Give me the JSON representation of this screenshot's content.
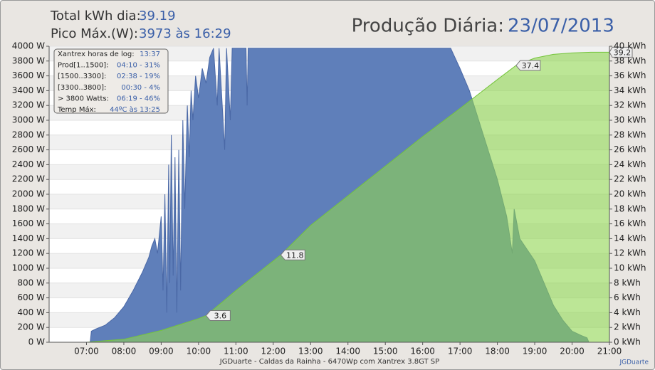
{
  "chart_data": {
    "type": "area",
    "header": {
      "total_label": "Total kWh dia:",
      "total_value": "39.19",
      "peak_label": "Pico Máx.(W):",
      "peak_value": "3973 às 16:29",
      "title": "Produção Diária:",
      "date": "23/07/2013"
    },
    "info_box": [
      [
        "Xantrex horas de log:",
        "13:37"
      ],
      [
        "Prod[1..1500]:",
        "04:10 - 31%"
      ],
      [
        "[1500..3300]:",
        "02:38 - 19%"
      ],
      [
        "[3300..3800]:",
        "00:30 - 4%"
      ],
      [
        "> 3800 Watts:",
        "06:19 - 46%"
      ],
      [
        "Temp Máx:",
        "44ºC às 13:25"
      ]
    ],
    "footer": "JGDuarte  -  Caldas da Rainha  -  6470Wp com Xantrex 3.8GT SP",
    "footer_link": "JGDuarte",
    "xlim": [
      6,
      21
    ],
    "xticks": [
      {
        "value": 7,
        "label": "07:00"
      },
      {
        "value": 8,
        "label": "08:00"
      },
      {
        "value": 9,
        "label": "09:00"
      },
      {
        "value": 10,
        "label": "10:00"
      },
      {
        "value": 11,
        "label": "11:00"
      },
      {
        "value": 12,
        "label": "12:00"
      },
      {
        "value": 13,
        "label": "13:00"
      },
      {
        "value": 14,
        "label": "14:00"
      },
      {
        "value": 15,
        "label": "15:00"
      },
      {
        "value": 16,
        "label": "16:00"
      },
      {
        "value": 17,
        "label": "17:00"
      },
      {
        "value": 18,
        "label": "18:00"
      },
      {
        "value": 19,
        "label": "19:00"
      },
      {
        "value": 20,
        "label": "20:00"
      },
      {
        "value": 21,
        "label": "21:00"
      }
    ],
    "ylim": [
      0,
      4000
    ],
    "yticks": [
      {
        "value": 0,
        "label": "0 W"
      },
      {
        "value": 200,
        "label": "200 W"
      },
      {
        "value": 400,
        "label": "400 W"
      },
      {
        "value": 600,
        "label": "600 W"
      },
      {
        "value": 800,
        "label": "800 W"
      },
      {
        "value": 1000,
        "label": "1000 W"
      },
      {
        "value": 1200,
        "label": "1200 W"
      },
      {
        "value": 1400,
        "label": "1400 W"
      },
      {
        "value": 1600,
        "label": "1600 W"
      },
      {
        "value": 1800,
        "label": "1800 W"
      },
      {
        "value": 2000,
        "label": "2000 W"
      },
      {
        "value": 2200,
        "label": "2200 W"
      },
      {
        "value": 2400,
        "label": "2400 W"
      },
      {
        "value": 2600,
        "label": "2600 W"
      },
      {
        "value": 2800,
        "label": "2800 W"
      },
      {
        "value": 3000,
        "label": "3000 W"
      },
      {
        "value": 3200,
        "label": "3200 W"
      },
      {
        "value": 3400,
        "label": "3400 W"
      },
      {
        "value": 3600,
        "label": "3600 W"
      },
      {
        "value": 3800,
        "label": "3800 W"
      },
      {
        "value": 4000,
        "label": "4000 W"
      }
    ],
    "y2lim": [
      0,
      40
    ],
    "y2ticks": [
      {
        "value": 0,
        "label": "0 kWh"
      },
      {
        "value": 2,
        "label": "2 kWh"
      },
      {
        "value": 4,
        "label": "4 kWh"
      },
      {
        "value": 6,
        "label": "6 kWh"
      },
      {
        "value": 8,
        "label": "8 kWh"
      },
      {
        "value": 10,
        "label": "10 kWh"
      },
      {
        "value": 12,
        "label": "12 kWh"
      },
      {
        "value": 14,
        "label": "14 kWh"
      },
      {
        "value": 16,
        "label": "16 kWh"
      },
      {
        "value": 18,
        "label": "18 kWh"
      },
      {
        "value": 20,
        "label": "20 kWh"
      },
      {
        "value": 22,
        "label": "22 kWh"
      },
      {
        "value": 24,
        "label": "24 kWh"
      },
      {
        "value": 26,
        "label": "26 kWh"
      },
      {
        "value": 28,
        "label": "28 kWh"
      },
      {
        "value": 30,
        "label": "30 kWh"
      },
      {
        "value": 32,
        "label": "32 kWh"
      },
      {
        "value": 34,
        "label": "34 kWh"
      },
      {
        "value": 36,
        "label": "36 kWh"
      },
      {
        "value": 38,
        "label": "38 kWh"
      },
      {
        "value": 40,
        "label": "40 kWh"
      }
    ],
    "grid": true,
    "series": [
      {
        "color": "#5f7fba",
        "x": [
          6,
          7.1,
          7.13,
          7.25,
          7.5,
          7.75,
          8,
          8.25,
          8.5,
          8.67,
          8.75,
          8.83,
          8.9,
          9.0,
          9.05,
          9.1,
          9.15,
          9.2,
          9.23,
          9.27,
          9.32,
          9.37,
          9.42,
          9.47,
          9.52,
          9.58,
          9.63,
          9.7,
          9.75,
          9.8,
          9.85,
          9.92,
          10,
          10.1,
          10.2,
          10.3,
          10.4,
          10.5,
          10.55,
          10.7,
          10.75,
          10.85,
          10.9,
          11.27,
          11.3,
          11.33,
          16.75,
          17,
          17.25,
          17.5,
          17.75,
          18,
          18.25,
          18.4,
          18.45,
          18.6,
          19,
          19.25,
          19.5,
          19.75,
          20,
          20.25,
          20.4,
          20.45,
          21
        ],
        "values": [
          0,
          0,
          150,
          180,
          230,
          330,
          480,
          700,
          950,
          1150,
          1300,
          1400,
          1200,
          1700,
          700,
          2000,
          400,
          2400,
          800,
          2800,
          900,
          2500,
          400,
          2600,
          700,
          3000,
          1800,
          3200,
          2500,
          3400,
          3000,
          3600,
          3300,
          3700,
          3500,
          3850,
          3973,
          3200,
          3973,
          2600,
          3973,
          3000,
          3973,
          3973,
          3200,
          3973,
          3973,
          3700,
          3400,
          3000,
          2600,
          2200,
          1700,
          1200,
          1800,
          1400,
          1100,
          800,
          500,
          300,
          150,
          90,
          60,
          0,
          0
        ]
      },
      {
        "color": "#8fd650",
        "axis": "y2",
        "x": [
          6,
          7,
          8,
          9,
          10,
          10.2,
          11,
          12,
          12.2,
          13,
          14,
          15,
          16,
          17,
          18,
          18.5,
          19,
          19.5,
          20,
          20.5,
          21
        ],
        "values": [
          0,
          0,
          0.4,
          1.6,
          3.2,
          3.6,
          7,
          11,
          11.8,
          15.8,
          19.8,
          23.8,
          27.8,
          31.6,
          35.5,
          37.4,
          38.4,
          38.9,
          39.1,
          39.19,
          39.19
        ]
      }
    ],
    "annotations": [
      {
        "x": 10.2,
        "y": 3.6
      },
      {
        "x": 12.2,
        "y": 11.8
      },
      {
        "x": 18.5,
        "y": 37.4
      },
      {
        "x": 21,
        "y": 39.2
      }
    ]
  }
}
